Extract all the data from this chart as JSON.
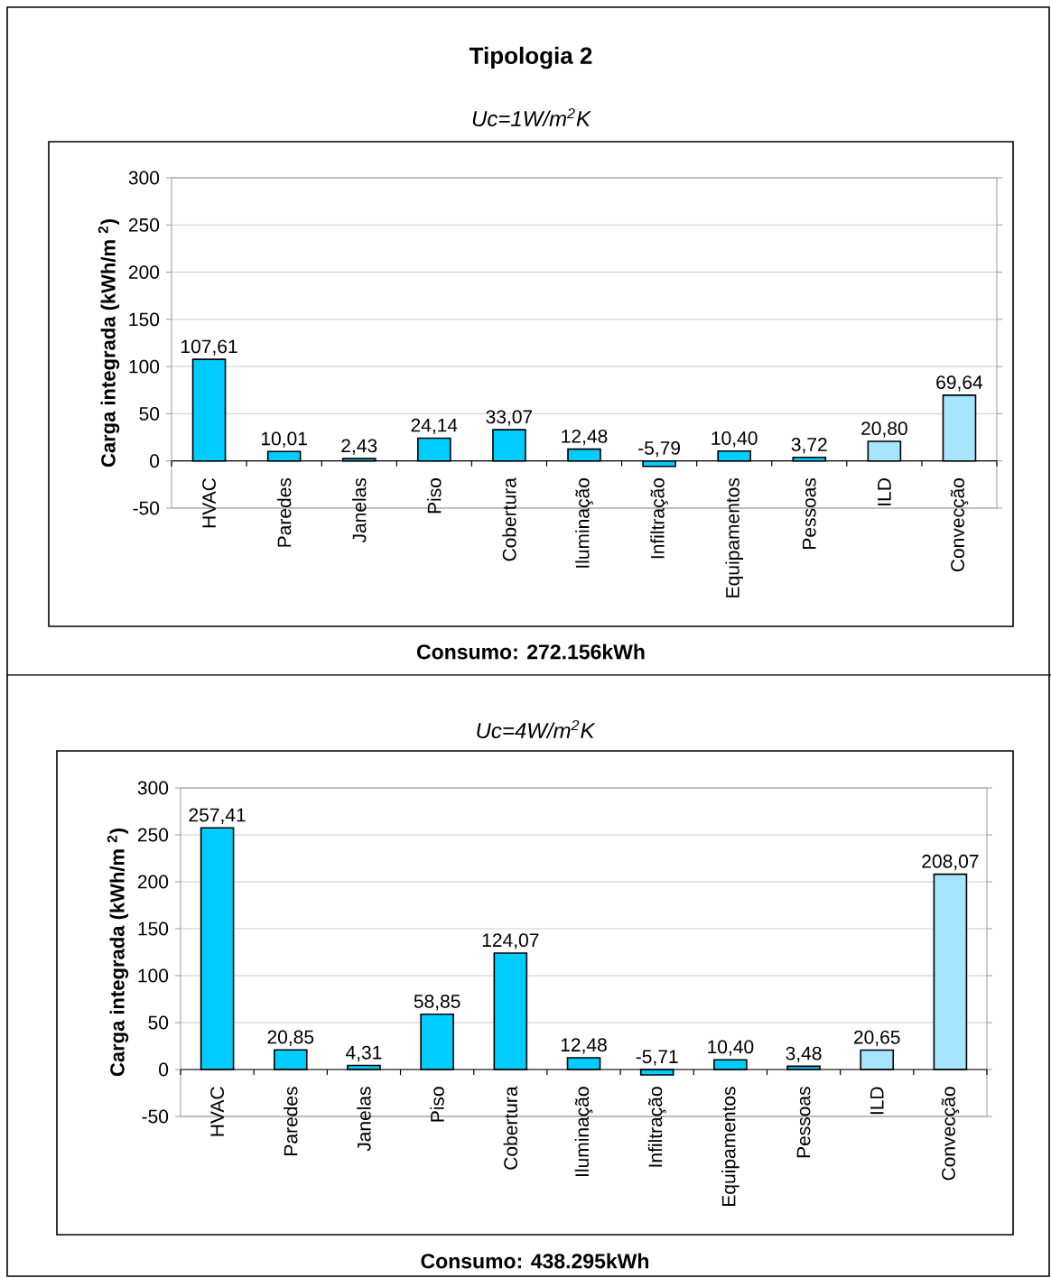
{
  "chart_data": [
    {
      "type": "bar",
      "title": "Tipologia 2",
      "subtitle": "Uc=1W/m$^{2}$K",
      "ylabel": "Carga integrada (kWh/m $^{2}$)",
      "categories": [
        "HVAC",
        "Paredes",
        "Janelas",
        "Piso",
        "Cobertura",
        "Iluminação",
        "Infiltração",
        "Equipamentos",
        "Pessoas",
        "ILD",
        "Convecção"
      ],
      "values": [
        107.61,
        10.01,
        2.43,
        24.14,
        33.07,
        12.48,
        -5.79,
        10.4,
        3.72,
        20.8,
        69.64
      ],
      "value_labels": [
        "107,61",
        "10,01",
        "2,43",
        "24,14",
        "33,07",
        "12,48",
        "-5,79",
        "10,40",
        "3,72",
        "20,80",
        "69,64"
      ],
      "colors": [
        "#00ccff",
        "#00ccff",
        "#00ccff",
        "#00ccff",
        "#00ccff",
        "#00ccff",
        "#00ccff",
        "#00ccff",
        "#00ccff",
        "#a6e4ff",
        "#a6e4ff"
      ],
      "ylim": [
        -50,
        300
      ],
      "yticks": [
        -50,
        0,
        50,
        100,
        150,
        200,
        250,
        300
      ],
      "grid": "y",
      "annotations": [
        "Consumo: 272.156kWh"
      ]
    },
    {
      "type": "bar",
      "subtitle": "Uc=4W/m$^{2}$K",
      "ylabel": "Carga integrada (kWh/m $^{2}$)",
      "categories": [
        "HVAC",
        "Paredes",
        "Janelas",
        "Piso",
        "Cobertura",
        "Iluminação",
        "Infiltração",
        "Equipamentos",
        "Pessoas",
        "ILD",
        "Convecção"
      ],
      "values": [
        257.41,
        20.85,
        4.31,
        58.85,
        124.07,
        12.48,
        -5.71,
        10.4,
        3.48,
        20.65,
        208.07
      ],
      "value_labels": [
        "257,41",
        "20,85",
        "4,31",
        "58,85",
        "124,07",
        "12,48",
        "-5,71",
        "10,40",
        "3,48",
        "20,65",
        "208,07"
      ],
      "colors": [
        "#00ccff",
        "#00ccff",
        "#00ccff",
        "#00ccff",
        "#00ccff",
        "#00ccff",
        "#00ccff",
        "#00ccff",
        "#00ccff",
        "#a6e4ff",
        "#a6e4ff"
      ],
      "ylim": [
        -50,
        300
      ],
      "yticks": [
        -50,
        0,
        50,
        100,
        150,
        200,
        250,
        300
      ],
      "grid": "y",
      "annotations": [
        "Consumo: 438.295kWh"
      ]
    }
  ]
}
